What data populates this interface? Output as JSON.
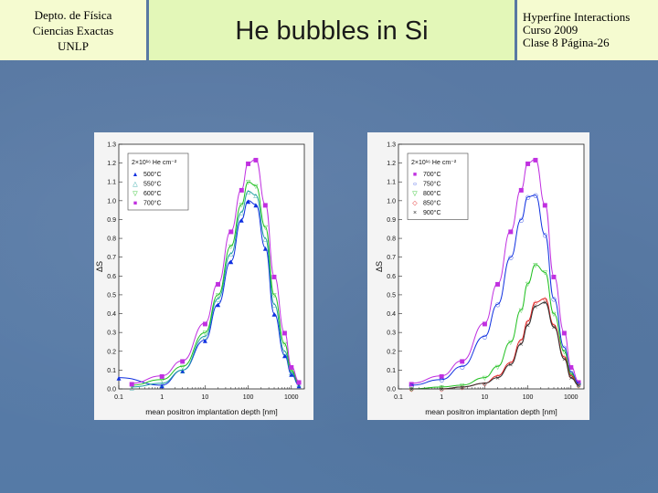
{
  "header": {
    "left_lines": [
      "Depto. de Física",
      "Ciencias Exactas",
      "UNLP"
    ],
    "title": "He bubbles in Si",
    "right_lines": [
      "Hyperfine Interactions",
      "Curso 2009",
      "Clase 8  Página-26"
    ]
  },
  "colors": {
    "header_bg": "#f5fbd0",
    "title_bg": "#e3f7b8",
    "slide_bg": "#5878a2"
  },
  "chart_data": [
    {
      "type": "scatter",
      "title": "",
      "xlabel": "mean positron implantation depth [nm]",
      "ylabel": "ΔS",
      "x_scale": "log",
      "xlim": [
        0.1,
        2000
      ],
      "ylim": [
        0.0,
        1.3
      ],
      "x_ticks": [
        "0.1",
        "1",
        "10",
        "100",
        "1000"
      ],
      "y_ticks": [
        "0.0",
        "0.1",
        "0.2",
        "0.3",
        "0.4",
        "0.5",
        "0.6",
        "0.7",
        "0.8",
        "0.9",
        "1.0",
        "1.1",
        "1.2",
        "1.3"
      ],
      "annotation": "2×10¹⁶ He cm⁻²",
      "legend_position": "top-left",
      "series": [
        {
          "name": "500°C",
          "color": "#1030e0",
          "marker": "▲",
          "x": [
            0.1,
            1,
            3,
            10,
            20,
            40,
            70,
            100,
            150,
            250,
            400,
            700,
            1000,
            1500
          ],
          "y": [
            0.06,
            0.02,
            0.1,
            0.26,
            0.45,
            0.68,
            0.9,
            1.0,
            0.98,
            0.75,
            0.4,
            0.18,
            0.08,
            0.02
          ]
        },
        {
          "name": "550°C",
          "color": "#20a0a0",
          "marker": "△",
          "x": [
            0.2,
            1,
            3,
            10,
            20,
            40,
            70,
            100,
            150,
            250,
            400,
            700,
            1000,
            1500
          ],
          "y": [
            0.01,
            0.03,
            0.1,
            0.28,
            0.48,
            0.72,
            0.94,
            1.05,
            1.03,
            0.8,
            0.45,
            0.2,
            0.09,
            0.03
          ]
        },
        {
          "name": "600°C",
          "color": "#20c020",
          "marker": "▽",
          "x": [
            0.2,
            1,
            3,
            10,
            20,
            40,
            70,
            100,
            150,
            250,
            400,
            700,
            1000,
            1500
          ],
          "y": [
            0.02,
            0.05,
            0.12,
            0.3,
            0.5,
            0.76,
            0.98,
            1.1,
            1.08,
            0.86,
            0.5,
            0.24,
            0.1,
            0.03
          ]
        },
        {
          "name": "700°C",
          "color": "#c030e0",
          "marker": "■",
          "x": [
            0.2,
            1,
            3,
            10,
            20,
            40,
            70,
            100,
            150,
            250,
            400,
            700,
            1000,
            1500
          ],
          "y": [
            0.03,
            0.07,
            0.15,
            0.35,
            0.56,
            0.84,
            1.06,
            1.2,
            1.22,
            0.98,
            0.6,
            0.3,
            0.12,
            0.04
          ]
        }
      ]
    },
    {
      "type": "scatter",
      "title": "",
      "xlabel": "mean positron implantation depth [nm]",
      "ylabel": "ΔS",
      "x_scale": "log",
      "xlim": [
        0.1,
        2000
      ],
      "ylim": [
        0.0,
        1.3
      ],
      "x_ticks": [
        "0.1",
        "1",
        "10",
        "100",
        "1000"
      ],
      "y_ticks": [
        "0.0",
        "0.1",
        "0.2",
        "0.3",
        "0.4",
        "0.5",
        "0.6",
        "0.7",
        "0.8",
        "0.9",
        "1.0",
        "1.1",
        "1.2",
        "1.3"
      ],
      "annotation": "2×10¹⁶ He cm⁻²",
      "legend_position": "top-left",
      "series": [
        {
          "name": "700°C",
          "color": "#c030e0",
          "marker": "■",
          "x": [
            0.2,
            1,
            3,
            10,
            20,
            40,
            70,
            100,
            150,
            250,
            400,
            700,
            1000,
            1500
          ],
          "y": [
            0.03,
            0.07,
            0.15,
            0.35,
            0.56,
            0.84,
            1.06,
            1.2,
            1.22,
            0.98,
            0.6,
            0.3,
            0.12,
            0.04
          ]
        },
        {
          "name": "750°C",
          "color": "#1030e0",
          "marker": "○",
          "x": [
            0.2,
            1,
            3,
            10,
            20,
            40,
            70,
            100,
            150,
            250,
            400,
            700,
            1000,
            1500
          ],
          "y": [
            0.02,
            0.05,
            0.12,
            0.28,
            0.45,
            0.7,
            0.9,
            1.02,
            1.03,
            0.82,
            0.48,
            0.22,
            0.09,
            0.03
          ]
        },
        {
          "name": "800°C",
          "color": "#20c020",
          "marker": "▽",
          "x": [
            0.2,
            1,
            3,
            10,
            20,
            40,
            70,
            100,
            150,
            250,
            400,
            700,
            1000,
            1500
          ],
          "y": [
            0.0,
            0.01,
            0.02,
            0.06,
            0.12,
            0.25,
            0.42,
            0.56,
            0.66,
            0.62,
            0.4,
            0.2,
            0.08,
            0.02
          ]
        },
        {
          "name": "850°C",
          "color": "#e02020",
          "marker": "◇",
          "x": [
            0.2,
            1,
            3,
            10,
            20,
            40,
            70,
            100,
            150,
            250,
            400,
            700,
            1000,
            1500
          ],
          "y": [
            0.0,
            0.0,
            0.01,
            0.03,
            0.07,
            0.14,
            0.26,
            0.36,
            0.46,
            0.48,
            0.34,
            0.17,
            0.07,
            0.02
          ]
        },
        {
          "name": "900°C",
          "color": "#303030",
          "marker": "×",
          "x": [
            0.2,
            1,
            3,
            10,
            20,
            40,
            70,
            100,
            150,
            250,
            400,
            700,
            1000,
            1500
          ],
          "y": [
            0.0,
            0.0,
            0.01,
            0.03,
            0.06,
            0.13,
            0.24,
            0.34,
            0.44,
            0.46,
            0.33,
            0.16,
            0.06,
            0.02
          ]
        }
      ]
    }
  ]
}
